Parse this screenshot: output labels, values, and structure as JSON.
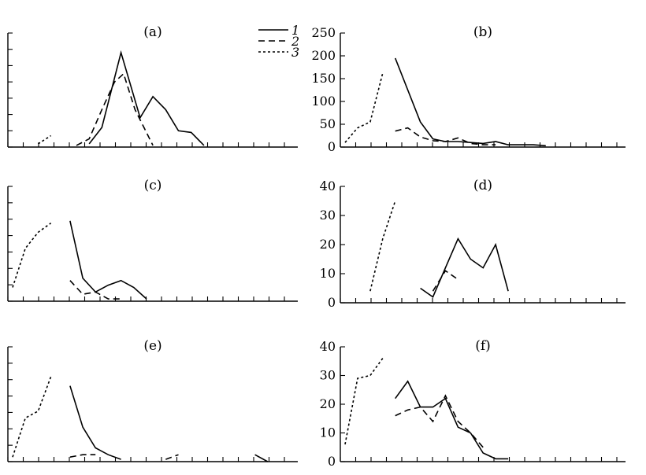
{
  "legend": {
    "entries": [
      {
        "label": "1",
        "style": "solid"
      },
      {
        "label": "2",
        "style": "dashed"
      },
      {
        "label": "3",
        "style": "dotted"
      }
    ]
  },
  "chart_data": [
    {
      "panel": "(a)",
      "type": "line",
      "yticks": [],
      "ylim": [
        0,
        7
      ],
      "series": [
        {
          "style": "solid",
          "points": [
            [
              6.0,
              0.2
            ],
            [
              7.0,
              1.2
            ],
            [
              8.5,
              5.8
            ],
            [
              10.0,
              1.8
            ],
            [
              11.0,
              3.1
            ],
            [
              12.0,
              2.3
            ],
            [
              13.0,
              1.0
            ],
            [
              14.0,
              0.9
            ],
            [
              15.0,
              0.1
            ]
          ]
        },
        {
          "style": "dashed",
          "points": [
            [
              5.0,
              0.1
            ],
            [
              6.0,
              0.5
            ],
            [
              7.0,
              2.3
            ],
            [
              8.0,
              4.0
            ],
            [
              8.7,
              4.5
            ],
            [
              9.6,
              2.3
            ],
            [
              11.0,
              0.1
            ]
          ]
        },
        {
          "style": "dotted",
          "points": [
            [
              2.0,
              0.2
            ],
            [
              3.0,
              0.7
            ]
          ]
        }
      ]
    },
    {
      "panel": "(b)",
      "type": "line",
      "yticks": [
        "0",
        "50",
        "100",
        "150",
        "200",
        "250"
      ],
      "ylim": [
        0,
        250
      ],
      "series": [
        {
          "style": "solid",
          "points": [
            [
              4.0,
              195
            ],
            [
              6.0,
              55
            ],
            [
              7.0,
              18
            ],
            [
              8.0,
              12
            ],
            [
              9.0,
              12
            ],
            [
              10.0,
              10
            ],
            [
              11.0,
              8
            ],
            [
              12.0,
              12
            ],
            [
              13.0,
              5
            ],
            [
              14.0,
              5
            ],
            [
              15.0,
              5
            ],
            [
              16.0,
              3
            ]
          ]
        },
        {
          "style": "dashed",
          "points": [
            [
              4.0,
              35
            ],
            [
              5.0,
              42
            ],
            [
              6.0,
              22
            ],
            [
              7.0,
              14
            ],
            [
              8.0,
              12
            ],
            [
              9.0,
              20
            ],
            [
              10.0,
              8
            ],
            [
              11.0,
              5
            ],
            [
              12.0,
              5
            ]
          ]
        },
        {
          "style": "dotted",
          "points": [
            [
              0.0,
              10
            ],
            [
              1.0,
              42
            ],
            [
              2.0,
              55
            ],
            [
              3.0,
              162
            ]
          ]
        }
      ]
    },
    {
      "panel": "(c)",
      "type": "line",
      "yticks": [],
      "ylim": [
        0,
        5
      ],
      "series": [
        {
          "style": "solid",
          "points": [
            [
              4.5,
              3.5
            ],
            [
              5.5,
              1.0
            ],
            [
              6.5,
              0.4
            ],
            [
              7.5,
              0.7
            ],
            [
              8.5,
              0.9
            ],
            [
              9.5,
              0.6
            ],
            [
              10.5,
              0.1
            ]
          ]
        },
        {
          "style": "dashed",
          "points": [
            [
              4.5,
              0.9
            ],
            [
              5.5,
              0.3
            ],
            [
              6.5,
              0.4
            ],
            [
              7.5,
              0.1
            ],
            [
              8.5,
              0.1
            ]
          ]
        },
        {
          "style": "dotted",
          "points": [
            [
              0.0,
              0.6
            ],
            [
              1.0,
              2.3
            ],
            [
              2.0,
              3.0
            ],
            [
              3.0,
              3.4
            ]
          ]
        }
      ]
    },
    {
      "panel": "(d)",
      "type": "line",
      "yticks": [
        "0",
        "10",
        "20",
        "30",
        "40"
      ],
      "ylim": [
        0,
        40
      ],
      "series": [
        {
          "style": "solid",
          "points": [
            [
              6.0,
              5
            ],
            [
              7.0,
              2
            ],
            [
              8.0,
              12
            ],
            [
              9.0,
              22
            ],
            [
              10.0,
              15
            ],
            [
              11.0,
              12
            ],
            [
              12.0,
              20
            ],
            [
              13.0,
              4
            ]
          ]
        },
        {
          "style": "dashed",
          "points": [
            [
              7.0,
              4
            ],
            [
              8.0,
              11
            ],
            [
              9.0,
              8
            ]
          ]
        },
        {
          "style": "dotted",
          "points": [
            [
              2.0,
              4
            ],
            [
              3.0,
              22
            ],
            [
              4.0,
              35
            ]
          ]
        }
      ]
    },
    {
      "panel": "(e)",
      "type": "line",
      "yticks": [],
      "ylim": [
        0,
        5
      ],
      "series": [
        {
          "style": "solid",
          "points": [
            [
              4.5,
              3.3
            ],
            [
              5.5,
              1.5
            ],
            [
              6.5,
              0.6
            ],
            [
              7.5,
              0.3
            ],
            [
              8.5,
              0.1
            ]
          ]
        },
        {
          "style": "solid",
          "points": [
            [
              19.0,
              0.3
            ],
            [
              20.0,
              0.0
            ]
          ]
        },
        {
          "style": "dashed",
          "points": [
            [
              4.5,
              0.2
            ],
            [
              5.5,
              0.3
            ],
            [
              6.5,
              0.3
            ]
          ]
        },
        {
          "style": "dashed",
          "points": [
            [
              12.0,
              0.1
            ],
            [
              13.0,
              0.3
            ]
          ]
        },
        {
          "style": "dotted",
          "points": [
            [
              0.0,
              0.2
            ],
            [
              1.0,
              1.9
            ],
            [
              2.0,
              2.2
            ],
            [
              3.0,
              3.7
            ]
          ]
        }
      ]
    },
    {
      "panel": "(f)",
      "type": "line",
      "yticks": [
        "0",
        "10",
        "20",
        "30",
        "40"
      ],
      "ylim": [
        0,
        40
      ],
      "series": [
        {
          "style": "solid",
          "points": [
            [
              4.0,
              22
            ],
            [
              5.0,
              28
            ],
            [
              6.0,
              19
            ],
            [
              7.0,
              19
            ],
            [
              8.0,
              22
            ],
            [
              9.0,
              12
            ],
            [
              10.0,
              10
            ],
            [
              11.0,
              3
            ],
            [
              12.0,
              1
            ],
            [
              13.0,
              1
            ]
          ]
        },
        {
          "style": "dashed",
          "points": [
            [
              4.0,
              16
            ],
            [
              5.0,
              18
            ],
            [
              6.0,
              19
            ],
            [
              7.0,
              14
            ],
            [
              8.0,
              23
            ],
            [
              9.0,
              14
            ],
            [
              10.0,
              10
            ],
            [
              11.0,
              5
            ]
          ]
        },
        {
          "style": "dotted",
          "points": [
            [
              0.0,
              6
            ],
            [
              1.0,
              29
            ],
            [
              2.0,
              30
            ],
            [
              3.0,
              36
            ]
          ]
        }
      ]
    }
  ]
}
